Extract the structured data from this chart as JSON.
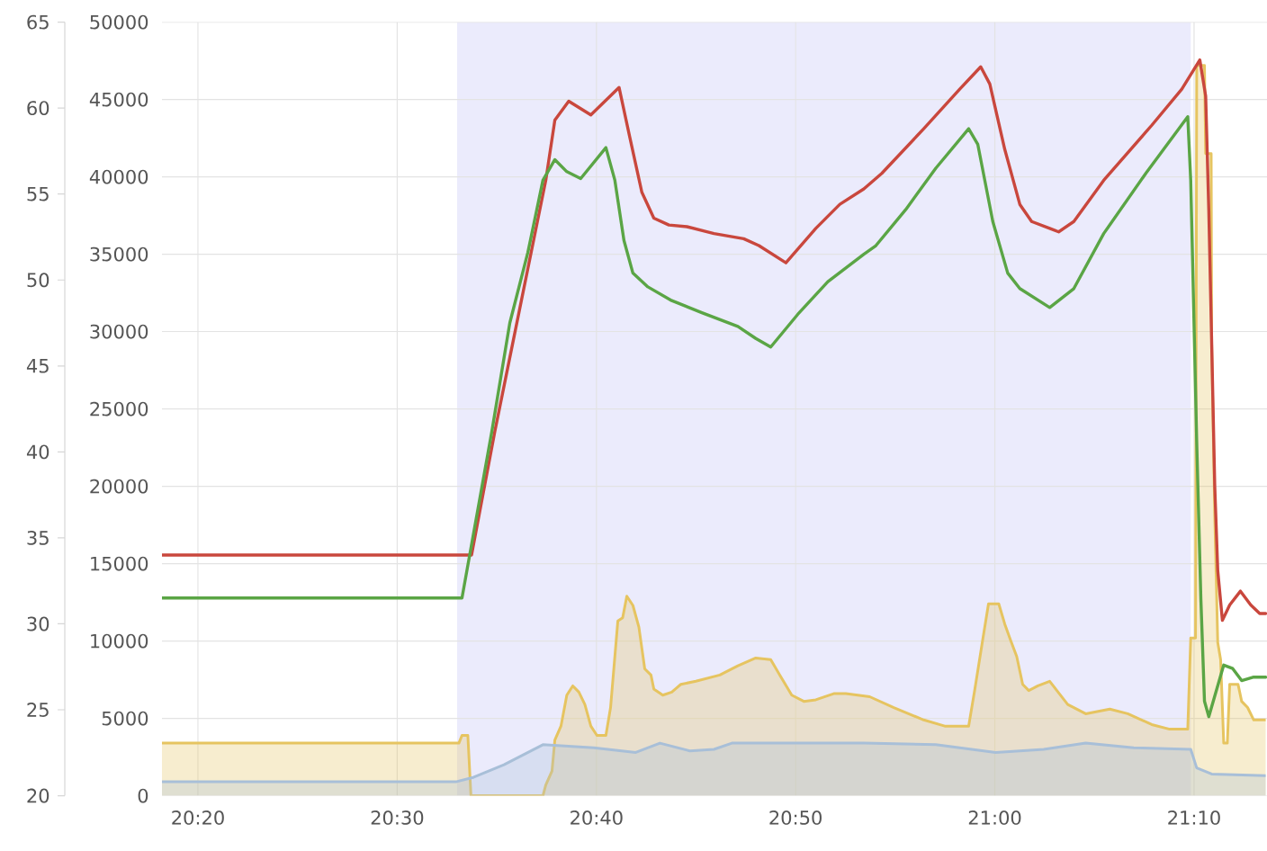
{
  "chart_data": {
    "type": "line",
    "xlim": [
      20.3032,
      21.2277
    ],
    "xticks": [
      {
        "value": 20.3333,
        "label": "20:20"
      },
      {
        "value": 20.5,
        "label": "20:30"
      },
      {
        "value": 20.6667,
        "label": "20:40"
      },
      {
        "value": 20.8333,
        "label": "20:50"
      },
      {
        "value": 21,
        "label": "21:00"
      },
      {
        "value": 21.1667,
        "label": "21:10"
      }
    ],
    "ylim": [
      0,
      50000
    ],
    "yticks": [
      0,
      5000,
      10000,
      15000,
      20000,
      25000,
      30000,
      35000,
      40000,
      45000,
      50000
    ],
    "y2lim": [
      20,
      65
    ],
    "y2ticks": [
      20,
      25,
      30,
      35,
      40,
      45,
      50,
      55,
      60,
      65
    ],
    "grid": true,
    "marker": "none",
    "line_style": "solid",
    "bands": [
      {
        "axis": "x",
        "from": 20.5501,
        "to": 21.1639,
        "color": "#ebebfc"
      }
    ],
    "series": [
      {
        "type": "area",
        "color": "#e6c460",
        "x": [
          20.3032,
          20.5516,
          20.5542,
          20.5591,
          20.5617,
          20.6219,
          20.6243,
          20.6295,
          20.6319,
          20.637,
          20.6419,
          20.6469,
          20.652,
          20.657,
          20.662,
          20.6671,
          20.6746,
          20.6785,
          20.6846,
          20.6886,
          20.6921,
          20.6972,
          20.7022,
          20.7071,
          20.7123,
          20.7147,
          20.7222,
          20.7297,
          20.7373,
          20.7499,
          20.7699,
          20.785,
          20.8,
          20.8125,
          20.8201,
          20.8301,
          20.8402,
          20.8502,
          20.8652,
          20.8753,
          20.8953,
          20.9155,
          20.9405,
          20.9581,
          20.9781,
          20.9833,
          20.9897,
          20.9947,
          21.0033,
          21.0083,
          21.0134,
          21.0183,
          21.0233,
          21.0284,
          21.036,
          21.0459,
          21.0519,
          21.061,
          21.076,
          21.0962,
          21.1112,
          21.1313,
          21.1463,
          21.1614,
          21.1639,
          21.1679,
          21.1689,
          21.1754,
          21.1764,
          21.181,
          21.1814,
          21.184,
          21.1865,
          21.1889,
          21.1915,
          21.1945,
          21.1965,
          21.2035,
          21.2065,
          21.2115,
          21.2166,
          21.2266
        ],
        "values": [
          3400,
          3400,
          3900,
          3900,
          0,
          0,
          700,
          1600,
          3600,
          4500,
          6500,
          7100,
          6700,
          5900,
          4500,
          3900,
          3900,
          5700,
          11300,
          11500,
          12900,
          12300,
          10900,
          8200,
          7800,
          6900,
          6500,
          6700,
          7200,
          7400,
          7800,
          8400,
          8900,
          8800,
          7800,
          6500,
          6100,
          6200,
          6600,
          6600,
          6400,
          5700,
          4900,
          4500,
          4500,
          6900,
          10000,
          12400,
          12400,
          11100,
          10000,
          9000,
          7200,
          6800,
          7100,
          7400,
          6800,
          5900,
          5300,
          5600,
          5300,
          4600,
          4300,
          4300,
          10200,
          10200,
          47200,
          47200,
          41500,
          41500,
          29300,
          18100,
          9900,
          8800,
          3400,
          3400,
          7200,
          7200,
          6100,
          5700,
          4900,
          4900
        ]
      },
      {
        "type": "area",
        "color": "#a8bfd8",
        "x": [
          20.3032,
          20.5491,
          20.5641,
          20.5893,
          20.6219,
          20.6645,
          20.6996,
          20.7198,
          20.7448,
          20.765,
          20.78,
          20.8904,
          20.9506,
          21.0007,
          21.0409,
          21.076,
          21.1162,
          21.1639,
          21.1689,
          21.1814,
          21.2266
        ],
        "values": [
          900,
          900,
          1200,
          2000,
          3300,
          3100,
          2800,
          3400,
          2900,
          3000,
          3400,
          3400,
          3300,
          2800,
          3000,
          3400,
          3100,
          3000,
          1800,
          1400,
          1300
        ]
      },
      {
        "color": "#c9473d",
        "axis": "y2",
        "x": [
          20.3032,
          20.5501,
          20.5622,
          20.5817,
          20.6243,
          20.6319,
          20.6435,
          20.662,
          20.6856,
          20.6946,
          20.7047,
          20.7147,
          20.7273,
          20.7424,
          20.765,
          20.7899,
          20.8026,
          20.8252,
          20.8502,
          20.8703,
          20.8904,
          20.9054,
          20.9405,
          20.9706,
          20.9882,
          20.9958,
          21.0083,
          21.0209,
          21.0308,
          21.0459,
          21.0534,
          21.0661,
          21.0911,
          21.1313,
          21.1564,
          21.1715,
          21.1764,
          21.179,
          21.1814,
          21.184,
          21.1865,
          21.1904,
          21.1965,
          21.2055,
          21.2141,
          21.2216,
          21.2266
        ],
        "values": [
          34.0,
          34.0,
          34.0,
          41.2,
          55.8,
          59.3,
          60.4,
          59.6,
          61.2,
          58.3,
          55.1,
          53.6,
          53.2,
          53.1,
          52.7,
          52.4,
          52.0,
          51.0,
          53.0,
          54.4,
          55.3,
          56.2,
          58.8,
          61.1,
          62.4,
          61.4,
          57.6,
          54.4,
          53.4,
          53.0,
          52.8,
          53.4,
          55.8,
          59.0,
          61.1,
          62.8,
          60.7,
          54.1,
          46.4,
          38.0,
          33.1,
          30.2,
          31.1,
          31.9,
          31.1,
          30.6,
          30.6
        ]
      },
      {
        "color": "#5aa545",
        "axis": "y2",
        "x": [
          20.3032,
          20.5542,
          20.5792,
          20.5942,
          20.6093,
          20.6219,
          20.6319,
          20.6419,
          20.6535,
          20.6746,
          20.6821,
          20.6897,
          20.6972,
          20.7097,
          20.7297,
          20.7549,
          20.785,
          20.8,
          20.8125,
          20.8351,
          20.8603,
          20.8904,
          20.9005,
          20.9255,
          20.9506,
          20.9781,
          20.9857,
          20.9983,
          21.0108,
          21.0209,
          21.0459,
          21.0661,
          21.0911,
          21.1263,
          21.1614,
          21.1639,
          21.1664,
          21.1689,
          21.1724,
          21.1754,
          21.179,
          21.184,
          21.1915,
          21.199,
          21.2065,
          21.2166,
          21.2266
        ],
        "values": [
          31.5,
          31.5,
          41.2,
          47.5,
          51.6,
          55.8,
          57.0,
          56.3,
          55.9,
          57.7,
          55.8,
          52.3,
          50.4,
          49.6,
          48.8,
          48.1,
          47.3,
          46.6,
          46.1,
          48.0,
          49.9,
          51.5,
          52.0,
          54.1,
          56.5,
          58.8,
          57.9,
          53.4,
          50.4,
          49.5,
          48.4,
          49.5,
          52.7,
          56.2,
          59.5,
          55.8,
          48.2,
          40.6,
          31.4,
          25.5,
          24.6,
          25.8,
          27.6,
          27.4,
          26.7,
          26.9,
          26.9
        ]
      }
    ]
  }
}
